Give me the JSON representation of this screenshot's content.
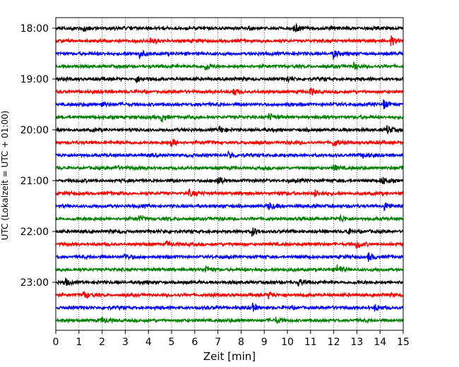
{
  "chart_data": {
    "type": "line",
    "title": "",
    "xlabel": "Zeit  [min]",
    "ylabel": "UTC (Lokalzeit = UTC + 01:00)",
    "xlim": [
      0,
      15
    ],
    "x_ticks": [
      "0",
      "1",
      "2",
      "3",
      "4",
      "5",
      "6",
      "7",
      "8",
      "9",
      "10",
      "11",
      "12",
      "13",
      "14",
      "15"
    ],
    "y_tick_labels": [
      "18:00",
      "19:00",
      "20:00",
      "21:00",
      "22:00",
      "23:00"
    ],
    "y_tick_rows": [
      0,
      4,
      8,
      12,
      16,
      20
    ],
    "grid": "vertical dotted lines at each minute",
    "trace_colors": [
      "#000000",
      "#ff0000",
      "#0000ff",
      "#008000"
    ],
    "trace_start_times": [
      "18:00",
      "18:15",
      "18:30",
      "18:45",
      "19:00",
      "19:15",
      "19:30",
      "19:45",
      "20:00",
      "20:15",
      "20:30",
      "20:45",
      "21:00",
      "21:15",
      "21:30",
      "21:45",
      "22:00",
      "22:15",
      "22:30",
      "22:45",
      "23:00",
      "23:15",
      "23:30",
      "23:45"
    ],
    "trace_duration_min": 15,
    "events": [
      {
        "row": 0,
        "t": 1.2,
        "amp": 0.8
      },
      {
        "row": 0,
        "t": 10.3,
        "amp": 1.0
      },
      {
        "row": 1,
        "t": 4.1,
        "amp": 0.7
      },
      {
        "row": 1,
        "t": 14.5,
        "amp": 1.0
      },
      {
        "row": 2,
        "t": 3.6,
        "amp": 1.0
      },
      {
        "row": 2,
        "t": 12.0,
        "amp": 0.9
      },
      {
        "row": 3,
        "t": 6.5,
        "amp": 0.8
      },
      {
        "row": 3,
        "t": 12.9,
        "amp": 0.8
      },
      {
        "row": 4,
        "t": 3.5,
        "amp": 0.7
      },
      {
        "row": 4,
        "t": 10.0,
        "amp": 0.6
      },
      {
        "row": 5,
        "t": 7.7,
        "amp": 0.8
      },
      {
        "row": 5,
        "t": 11.0,
        "amp": 0.8
      },
      {
        "row": 6,
        "t": 2.0,
        "amp": 0.6
      },
      {
        "row": 6,
        "t": 14.2,
        "amp": 0.9
      },
      {
        "row": 7,
        "t": 4.6,
        "amp": 0.8
      },
      {
        "row": 7,
        "t": 9.2,
        "amp": 0.7
      },
      {
        "row": 8,
        "t": 7.1,
        "amp": 0.7
      },
      {
        "row": 8,
        "t": 14.3,
        "amp": 0.9
      },
      {
        "row": 9,
        "t": 5.0,
        "amp": 0.8
      },
      {
        "row": 9,
        "t": 12.0,
        "amp": 0.8
      },
      {
        "row": 10,
        "t": 7.5,
        "amp": 0.7
      },
      {
        "row": 10,
        "t": 13.3,
        "amp": 0.6
      },
      {
        "row": 11,
        "t": 2.6,
        "amp": 0.6
      },
      {
        "row": 11,
        "t": 12.0,
        "amp": 0.7
      },
      {
        "row": 12,
        "t": 7.0,
        "amp": 1.0
      },
      {
        "row": 12,
        "t": 14.1,
        "amp": 0.8
      },
      {
        "row": 13,
        "t": 5.8,
        "amp": 0.6
      },
      {
        "row": 13,
        "t": 11.2,
        "amp": 0.7
      },
      {
        "row": 14,
        "t": 9.2,
        "amp": 0.8
      },
      {
        "row": 14,
        "t": 14.2,
        "amp": 0.9
      },
      {
        "row": 15,
        "t": 3.6,
        "amp": 0.6
      },
      {
        "row": 15,
        "t": 12.3,
        "amp": 0.6
      },
      {
        "row": 16,
        "t": 8.5,
        "amp": 1.0
      },
      {
        "row": 16,
        "t": 12.6,
        "amp": 0.7
      },
      {
        "row": 17,
        "t": 4.8,
        "amp": 0.6
      },
      {
        "row": 17,
        "t": 13.0,
        "amp": 0.9
      },
      {
        "row": 18,
        "t": 3.0,
        "amp": 0.6
      },
      {
        "row": 18,
        "t": 13.5,
        "amp": 1.0
      },
      {
        "row": 19,
        "t": 6.5,
        "amp": 0.8
      },
      {
        "row": 19,
        "t": 12.2,
        "amp": 1.0
      },
      {
        "row": 20,
        "t": 0.4,
        "amp": 0.8
      },
      {
        "row": 20,
        "t": 10.5,
        "amp": 0.8
      },
      {
        "row": 21,
        "t": 1.2,
        "amp": 0.8
      },
      {
        "row": 21,
        "t": 9.2,
        "amp": 0.7
      },
      {
        "row": 22,
        "t": 8.5,
        "amp": 0.8
      },
      {
        "row": 22,
        "t": 13.8,
        "amp": 0.6
      },
      {
        "row": 23,
        "t": 2.0,
        "amp": 0.6
      },
      {
        "row": 23,
        "t": 9.5,
        "amp": 0.6
      }
    ]
  }
}
